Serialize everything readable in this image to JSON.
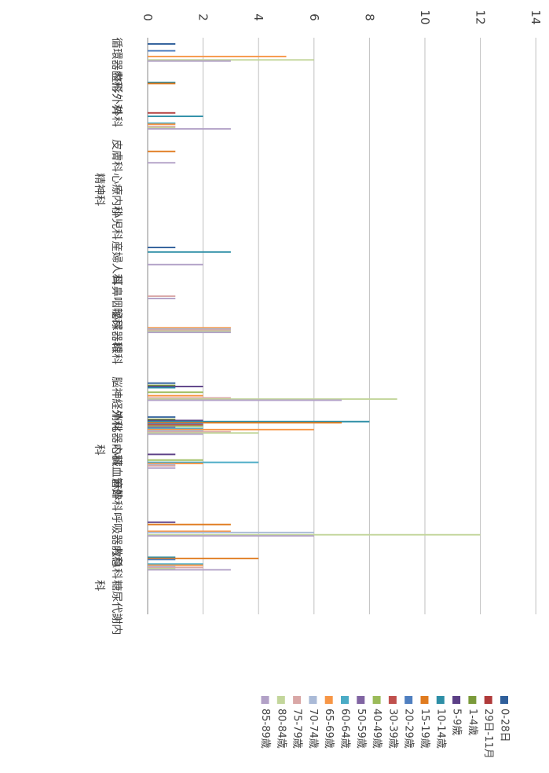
{
  "chart_data": {
    "type": "bar",
    "orientation": "horizontal",
    "categories": [
      "循環器内科",
      "整形外科",
      "外科",
      "皮膚科",
      "心療内科・精神科",
      "小児科",
      "産婦人科",
      "耳鼻咽喉科",
      "泌尿器科",
      "眼科",
      "脳神経外科",
      "消化器内科",
      "心臓血管外科",
      "麻酔科",
      "呼吸器内科",
      "救急科",
      "糖尿代謝内科"
    ],
    "xlim": [
      0,
      14
    ],
    "xticks": [
      0,
      2,
      4,
      6,
      8,
      10,
      12,
      14
    ],
    "grid": true,
    "legend_position": "bottom",
    "series": [
      {
        "name": "0-28日",
        "color": "#2f5f9b",
        "values": [
          1,
          0,
          0,
          0,
          0,
          0,
          1,
          0,
          0,
          0,
          1,
          1,
          0,
          0,
          0,
          0,
          0
        ]
      },
      {
        "name": "29日-11月",
        "color": "#b03a3a",
        "values": [
          0,
          0,
          1,
          0,
          0,
          0,
          0,
          0,
          0,
          0,
          0,
          0,
          0,
          0,
          0,
          0,
          0
        ]
      },
      {
        "name": "1-4歳",
        "color": "#7a9a3a",
        "values": [
          0,
          0,
          0,
          0,
          0,
          0,
          0,
          0,
          0,
          0,
          1,
          1,
          0,
          0,
          0,
          0,
          0
        ]
      },
      {
        "name": "5-9歳",
        "color": "#5b3f86",
        "values": [
          0,
          0,
          0,
          0,
          0,
          0,
          0,
          0,
          0,
          0,
          2,
          2,
          1,
          0,
          1,
          0,
          0
        ]
      },
      {
        "name": "10-14歳",
        "color": "#2d8ea6",
        "values": [
          0,
          1,
          2,
          0,
          0,
          0,
          3,
          0,
          0,
          0,
          1,
          8,
          0,
          0,
          0,
          1,
          0
        ]
      },
      {
        "name": "15-19歳",
        "color": "#e07b1f",
        "values": [
          0,
          1,
          0,
          1,
          0,
          0,
          0,
          0,
          0,
          0,
          0,
          7,
          0,
          0,
          3,
          4,
          0
        ]
      },
      {
        "name": "20-29歳",
        "color": "#4f7fc0",
        "values": [
          1,
          0,
          0,
          0,
          0,
          0,
          0,
          0,
          0,
          0,
          0,
          2,
          0,
          0,
          0,
          1,
          0
        ]
      },
      {
        "name": "30-39歳",
        "color": "#c0504d",
        "values": [
          0,
          0,
          0,
          0,
          0,
          0,
          0,
          0,
          0,
          0,
          0,
          2,
          0,
          0,
          0,
          0,
          0
        ]
      },
      {
        "name": "40-49歳",
        "color": "#9bbb59",
        "values": [
          0,
          0,
          0,
          0,
          0,
          0,
          0,
          0,
          0,
          0,
          2,
          2,
          2,
          0,
          0,
          0,
          0
        ]
      },
      {
        "name": "50-59歳",
        "color": "#8064a2",
        "values": [
          0,
          0,
          0,
          0,
          0,
          0,
          0,
          0,
          0,
          0,
          0,
          1,
          0,
          0,
          0,
          0,
          0
        ]
      },
      {
        "name": "60-64歳",
        "color": "#4bacc6",
        "values": [
          0,
          0,
          1,
          0,
          0,
          0,
          0,
          0,
          0,
          0,
          0,
          2,
          4,
          0,
          0,
          2,
          0
        ]
      },
      {
        "name": "65-69歳",
        "color": "#f79646",
        "values": [
          5,
          0,
          1,
          0,
          0,
          0,
          0,
          0,
          3,
          0,
          2,
          6,
          2,
          0,
          3,
          2,
          0
        ]
      },
      {
        "name": "70-74歳",
        "color": "#aabad7",
        "values": [
          0,
          0,
          0,
          0,
          0,
          0,
          0,
          0,
          3,
          0,
          0,
          2,
          1,
          0,
          6,
          1,
          0
        ]
      },
      {
        "name": "75-79歳",
        "color": "#d9a7a6",
        "values": [
          0,
          0,
          1,
          0,
          0,
          0,
          0,
          1,
          3,
          0,
          3,
          3,
          1,
          0,
          0,
          2,
          0
        ]
      },
      {
        "name": "80-84歳",
        "color": "#c3d69b",
        "values": [
          6,
          0,
          1,
          0,
          0,
          0,
          0,
          0,
          3,
          0,
          9,
          4,
          0,
          0,
          12,
          1,
          0
        ]
      },
      {
        "name": "85-89歳",
        "color": "#b2a1c7",
        "values": [
          3,
          0,
          3,
          1,
          0,
          0,
          2,
          1,
          3,
          0,
          7,
          2,
          1,
          0,
          6,
          3,
          0
        ]
      }
    ]
  }
}
